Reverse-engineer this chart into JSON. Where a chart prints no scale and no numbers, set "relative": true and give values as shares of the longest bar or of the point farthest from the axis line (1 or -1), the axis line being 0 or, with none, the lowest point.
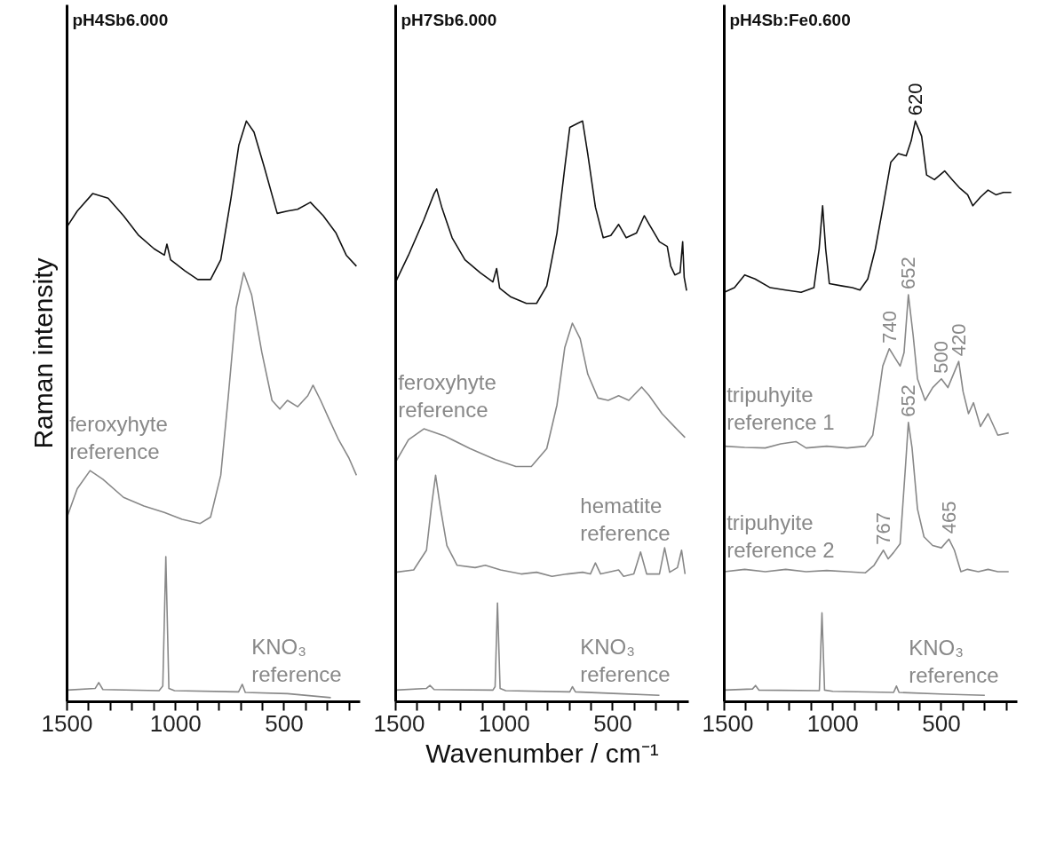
{
  "chart_data": [
    {
      "type": "line",
      "title": "pH4Sb6.000",
      "ylabel": "Raman intensity",
      "relative": true,
      "grid": false,
      "tick_labels": "x",
      "xlim": [
        1500,
        150
      ],
      "xticks": [
        1500,
        {
          "value": 1400,
          "label": null
        },
        {
          "value": 1300,
          "label": null
        },
        {
          "value": 1200,
          "label": null
        },
        {
          "value": 1100,
          "label": null
        },
        1000,
        {
          "value": 900,
          "label": null
        },
        {
          "value": 800,
          "label": null
        },
        {
          "value": 700,
          "label": null
        },
        {
          "value": 600,
          "label": null
        },
        500,
        {
          "value": 400,
          "label": null
        },
        {
          "value": 300,
          "label": null
        },
        {
          "value": 200,
          "label": null
        }
      ],
      "series": [
        {
          "color": "#111111",
          "x": [
            1500,
            1453,
            1382,
            1311,
            1240,
            1170,
            1099,
            1052,
            1040,
            1023,
            957,
            898,
            839,
            792,
            745,
            709,
            674,
            639,
            591,
            532,
            485,
            438,
            379,
            320,
            261,
            214,
            167
          ],
          "values": [
            0.818,
            0.845,
            0.875,
            0.867,
            0.837,
            0.803,
            0.78,
            0.769,
            0.788,
            0.761,
            0.742,
            0.727,
            0.727,
            0.761,
            0.867,
            0.958,
            1.0,
            0.981,
            0.92,
            0.841,
            0.845,
            0.848,
            0.86,
            0.837,
            0.807,
            0.769,
            0.75
          ]
        },
        {
          "name": "feroxyhyte\nreference",
          "color": "#888888",
          "x": [
            1500,
            1453,
            1394,
            1335,
            1240,
            1146,
            1052,
            970,
            887,
            839,
            792,
            757,
            721,
            686,
            650,
            603,
            556,
            520,
            485,
            438,
            391,
            367,
            332,
            296,
            249,
            202,
            167
          ],
          "values": [
            0.318,
            0.367,
            0.398,
            0.383,
            0.352,
            0.337,
            0.326,
            0.314,
            0.307,
            0.318,
            0.39,
            0.527,
            0.678,
            0.739,
            0.701,
            0.602,
            0.519,
            0.504,
            0.519,
            0.508,
            0.527,
            0.545,
            0.519,
            0.489,
            0.451,
            0.42,
            0.39
          ]
        },
        {
          "name": "KNO₃\nreference",
          "color": "#888888",
          "x": [
            1500,
            1370,
            1354,
            1335,
            1076,
            1059,
            1045,
            1031,
            1005,
            710,
            693,
            679,
            485,
            285
          ],
          "values": [
            0.02,
            0.023,
            0.033,
            0.021,
            0.019,
            0.027,
            0.25,
            0.023,
            0.019,
            0.017,
            0.03,
            0.016,
            0.014,
            0.007
          ]
        }
      ]
    },
    {
      "type": "line",
      "title": "pH7Sb6.000",
      "xlabel": "Wavenumber / cm⁻¹",
      "relative": true,
      "grid": false,
      "tick_labels": "x",
      "xlim": [
        1500,
        150
      ],
      "xticks": [
        1500,
        {
          "value": 1400,
          "label": null
        },
        {
          "value": 1300,
          "label": null
        },
        {
          "value": 1200,
          "label": null
        },
        {
          "value": 1100,
          "label": null
        },
        1000,
        {
          "value": 900,
          "label": null
        },
        {
          "value": 800,
          "label": null
        },
        {
          "value": 700,
          "label": null
        },
        {
          "value": 600,
          "label": null
        },
        500,
        {
          "value": 400,
          "label": null
        },
        {
          "value": 300,
          "label": null
        },
        {
          "value": 200,
          "label": null
        }
      ],
      "series": [
        {
          "color": "#111111",
          "x": [
            1500,
            1441,
            1370,
            1323,
            1311,
            1288,
            1240,
            1181,
            1111,
            1052,
            1035,
            1021,
            969,
            898,
            851,
            804,
            757,
            721,
            698,
            662,
            639,
            615,
            580,
            544,
            509,
            473,
            438,
            391,
            355,
            332,
            285,
            249,
            233,
            214,
            190,
            178,
            171,
            160
          ],
          "values": [
            0.723,
            0.769,
            0.83,
            0.875,
            0.883,
            0.852,
            0.799,
            0.761,
            0.739,
            0.723,
            0.746,
            0.712,
            0.697,
            0.686,
            0.686,
            0.716,
            0.807,
            0.92,
            0.989,
            0.996,
            1.0,
            0.943,
            0.852,
            0.799,
            0.803,
            0.822,
            0.799,
            0.807,
            0.837,
            0.822,
            0.792,
            0.784,
            0.75,
            0.735,
            0.739,
            0.792,
            0.731,
            0.708
          ]
        },
        {
          "name": "feroxyhyte\nreference",
          "color": "#888888",
          "x": [
            1500,
            1441,
            1370,
            1276,
            1158,
            1040,
            946,
            875,
            804,
            757,
            721,
            686,
            650,
            615,
            568,
            521,
            473,
            426,
            367,
            332,
            273,
            214,
            167
          ],
          "values": [
            0.413,
            0.451,
            0.47,
            0.458,
            0.436,
            0.417,
            0.405,
            0.405,
            0.436,
            0.511,
            0.61,
            0.652,
            0.625,
            0.564,
            0.523,
            0.519,
            0.527,
            0.519,
            0.542,
            0.527,
            0.496,
            0.473,
            0.455
          ]
        },
        {
          "name": "hematite\nreference",
          "color": "#888888",
          "x": [
            1500,
            1417,
            1358,
            1335,
            1316,
            1295,
            1264,
            1217,
            1134,
            1087,
            1017,
            922,
            851,
            780,
            710,
            639,
            603,
            580,
            556,
            473,
            450,
            403,
            372,
            344,
            285,
            261,
            238,
            202,
            183,
            167
          ],
          "values": [
            0.223,
            0.227,
            0.261,
            0.337,
            0.39,
            0.337,
            0.269,
            0.235,
            0.231,
            0.235,
            0.227,
            0.22,
            0.223,
            0.216,
            0.22,
            0.223,
            0.22,
            0.239,
            0.22,
            0.227,
            0.216,
            0.22,
            0.258,
            0.22,
            0.22,
            0.265,
            0.223,
            0.231,
            0.261,
            0.22
          ]
        },
        {
          "name": "KNO₃\nreference",
          "color": "#888888",
          "x": [
            1500,
            1358,
            1342,
            1323,
            1052,
            1042,
            1031,
            1019,
            993,
            698,
            686,
            672,
            473,
            285
          ],
          "values": [
            0.02,
            0.023,
            0.028,
            0.021,
            0.02,
            0.026,
            0.17,
            0.023,
            0.019,
            0.017,
            0.026,
            0.017,
            0.014,
            0.011
          ]
        }
      ]
    },
    {
      "type": "line",
      "title": "pH4Sb:Fe0.600",
      "relative": true,
      "grid": false,
      "tick_labels": "x",
      "xlim": [
        1500,
        150
      ],
      "xticks": [
        1500,
        {
          "value": 1400,
          "label": null
        },
        {
          "value": 1300,
          "label": null
        },
        {
          "value": 1200,
          "label": null
        },
        {
          "value": 1100,
          "label": null
        },
        1000,
        {
          "value": 900,
          "label": null
        },
        {
          "value": 800,
          "label": null
        },
        {
          "value": 700,
          "label": null
        },
        {
          "value": 600,
          "label": null
        },
        500,
        {
          "value": 400,
          "label": null
        },
        {
          "value": 300,
          "label": null
        },
        {
          "value": 200,
          "label": null
        }
      ],
      "series": [
        {
          "color": "#111111",
          "x": [
            1500,
            1453,
            1406,
            1358,
            1288,
            1217,
            1146,
            1087,
            1063,
            1047,
            1033,
            1016,
            957,
            910,
            875,
            839,
            804,
            768,
            733,
            698,
            662,
            639,
            620,
            591,
            568,
            532,
            485,
            450,
            414,
            379,
            355,
            320,
            285,
            249,
            214,
            178
          ],
          "values": [
            0.705,
            0.713,
            0.735,
            0.728,
            0.713,
            0.709,
            0.705,
            0.713,
            0.78,
            0.854,
            0.78,
            0.72,
            0.716,
            0.713,
            0.709,
            0.728,
            0.78,
            0.854,
            0.929,
            0.944,
            0.94,
            0.966,
            1.0,
            0.974,
            0.907,
            0.899,
            0.914,
            0.899,
            0.884,
            0.873,
            0.854,
            0.869,
            0.881,
            0.873,
            0.877,
            0.877
          ]
        },
        {
          "name": "tripuhyite\nreference 1",
          "color": "#888888",
          "x": [
            1500,
            1406,
            1311,
            1240,
            1170,
            1123,
            1028,
            934,
            851,
            816,
            792,
            770,
            740,
            715,
            690,
            672,
            652,
            630,
            610,
            575,
            540,
            500,
            470,
            420,
            400,
            375,
            352,
            320,
            285,
            240,
            190
          ],
          "values": [
            0.44,
            0.438,
            0.437,
            0.444,
            0.448,
            0.437,
            0.44,
            0.437,
            0.44,
            0.459,
            0.519,
            0.578,
            0.608,
            0.593,
            0.578,
            0.601,
            0.701,
            0.631,
            0.556,
            0.519,
            0.541,
            0.556,
            0.541,
            0.586,
            0.534,
            0.496,
            0.515,
            0.474,
            0.496,
            0.459,
            0.463
          ]
        },
        {
          "name": "tripuhyite\nreference 2",
          "color": "#888888",
          "x": [
            1500,
            1406,
            1311,
            1217,
            1123,
            1028,
            934,
            851,
            810,
            767,
            745,
            720,
            690,
            665,
            652,
            635,
            610,
            580,
            540,
            500,
            465,
            440,
            410,
            380,
            330,
            285,
            240,
            190
          ],
          "values": [
            0.224,
            0.228,
            0.224,
            0.228,
            0.224,
            0.226,
            0.224,
            0.222,
            0.235,
            0.261,
            0.246,
            0.257,
            0.272,
            0.407,
            0.481,
            0.437,
            0.332,
            0.284,
            0.269,
            0.265,
            0.28,
            0.261,
            0.224,
            0.228,
            0.224,
            0.228,
            0.224,
            0.224
          ]
        },
        {
          "name": "KNO₃\nreference",
          "color": "#888888",
          "x": [
            1500,
            1370,
            1356,
            1340,
            1062,
            1050,
            1038,
            1000,
            720,
            707,
            695,
            480,
            300
          ],
          "values": [
            0.02,
            0.022,
            0.028,
            0.02,
            0.019,
            0.153,
            0.02,
            0.018,
            0.016,
            0.027,
            0.016,
            0.013,
            0.011
          ]
        }
      ],
      "annotations": [
        {
          "text": "620",
          "x": 620,
          "y": 1.0
        },
        {
          "text": "740",
          "x": 740,
          "y": 0.608
        },
        {
          "text": "652",
          "x": 652,
          "y": 0.701
        },
        {
          "text": "500",
          "x": 500,
          "y": 0.556
        },
        {
          "text": "420",
          "x": 420,
          "y": 0.586
        },
        {
          "text": "652",
          "x": 652,
          "y": 0.481
        },
        {
          "text": "767",
          "x": 767,
          "y": 0.261
        },
        {
          "text": "465",
          "x": 465,
          "y": 0.28
        }
      ]
    }
  ]
}
